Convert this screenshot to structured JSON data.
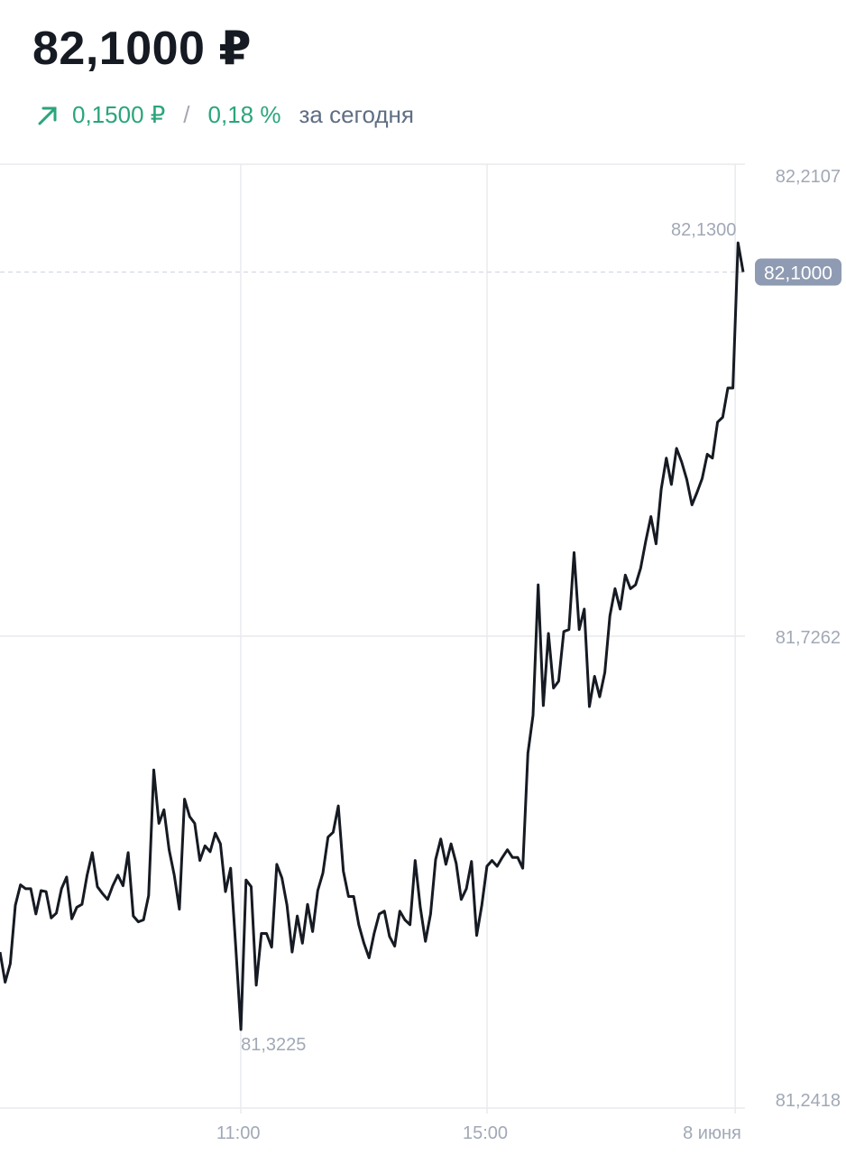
{
  "header": {
    "price": "82,1000 ₽",
    "change_abs": "0,1500 ₽",
    "separator": "/",
    "change_pct": "0,18 %",
    "period": "за сегодня",
    "trend_icon": "arrow-up-right-icon"
  },
  "colors": {
    "up": "#2aa57a",
    "line": "#161a22",
    "grid": "#e8eaee",
    "badge": "#8e9bb2"
  },
  "chart_data": {
    "type": "line",
    "title": "",
    "xlabel": "",
    "ylabel": "",
    "ylim": [
      81.2418,
      82.2107
    ],
    "x_range_hours": [
      7.09,
      19.16
    ],
    "y_ticks": [
      {
        "value": 82.2107,
        "label": "82,2107"
      },
      {
        "value": 81.7262,
        "label": "81,7262"
      },
      {
        "value": 81.2418,
        "label": "81,2418"
      }
    ],
    "x_ticks": [
      {
        "value": 11,
        "label": "11:00"
      },
      {
        "value": 15,
        "label": "15:00"
      },
      {
        "value": 19.03,
        "label": "8 июня"
      }
    ],
    "current": {
      "value": 82.1,
      "label": "82,1000"
    },
    "max_annotation": {
      "value": 82.13,
      "label": "82,1300"
    },
    "min_annotation": {
      "value": 81.3225,
      "label": "81,3225"
    },
    "grid": true,
    "values": [
      81.402,
      81.371,
      81.39,
      81.45,
      81.471,
      81.467,
      81.467,
      81.441,
      81.465,
      81.464,
      81.437,
      81.442,
      81.467,
      81.479,
      81.436,
      81.448,
      81.451,
      81.481,
      81.504,
      81.469,
      81.462,
      81.456,
      81.47,
      81.481,
      81.47,
      81.504,
      81.439,
      81.433,
      81.435,
      81.46,
      81.589,
      81.534,
      81.548,
      81.507,
      81.481,
      81.446,
      81.559,
      81.541,
      81.534,
      81.496,
      81.511,
      81.505,
      81.524,
      81.513,
      81.464,
      81.488,
      81.407,
      81.3225,
      81.476,
      81.469,
      81.368,
      81.421,
      81.421,
      81.407,
      81.492,
      81.478,
      81.45,
      81.402,
      81.439,
      81.411,
      81.451,
      81.423,
      81.465,
      81.483,
      81.52,
      81.525,
      81.552,
      81.485,
      81.459,
      81.459,
      81.43,
      81.411,
      81.396,
      81.421,
      81.441,
      81.444,
      81.418,
      81.408,
      81.444,
      81.435,
      81.43,
      81.496,
      81.448,
      81.413,
      81.441,
      81.497,
      81.518,
      81.492,
      81.513,
      81.493,
      81.456,
      81.467,
      81.495,
      81.419,
      81.45,
      81.49,
      81.496,
      81.49,
      81.499,
      81.507,
      81.499,
      81.499,
      81.488,
      81.606,
      81.645,
      81.779,
      81.655,
      81.729,
      81.673,
      81.68,
      81.731,
      81.733,
      81.812,
      81.733,
      81.754,
      81.654,
      81.685,
      81.664,
      81.689,
      81.747,
      81.775,
      81.754,
      81.789,
      81.775,
      81.779,
      81.796,
      81.824,
      81.849,
      81.821,
      81.877,
      81.909,
      81.882,
      81.919,
      81.905,
      81.887,
      81.861,
      81.874,
      81.888,
      81.913,
      81.909,
      81.946,
      81.951,
      81.981,
      81.981,
      82.13,
      82.1
    ]
  }
}
